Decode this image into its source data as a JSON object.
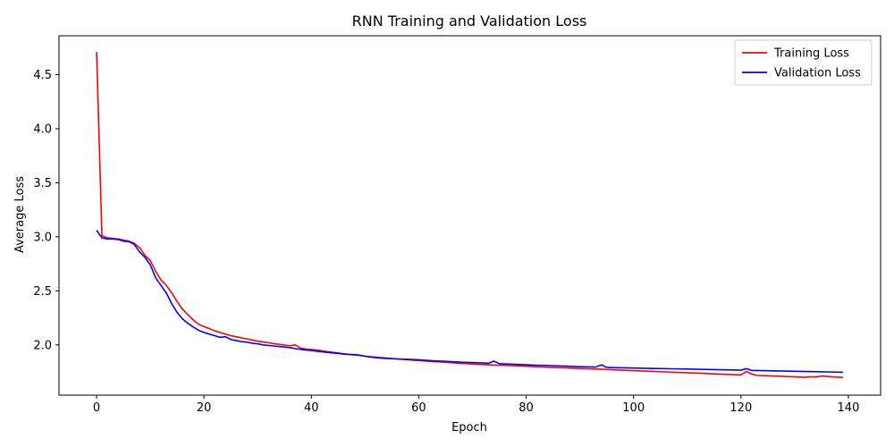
{
  "chart_data": {
    "type": "line",
    "title": "RNN Training and Validation Loss",
    "xlabel": "Epoch",
    "ylabel": "Average Loss",
    "xlim": [
      -7,
      146
    ],
    "ylim": [
      1.535,
      4.86
    ],
    "xticks": [
      0,
      20,
      40,
      60,
      80,
      100,
      120,
      140
    ],
    "yticks": [
      2.0,
      2.5,
      3.0,
      3.5,
      4.0,
      4.5
    ],
    "xtick_labels": [
      "0",
      "20",
      "40",
      "60",
      "80",
      "100",
      "120",
      "140"
    ],
    "ytick_labels": [
      "2.0",
      "2.5",
      "3.0",
      "3.5",
      "4.0",
      "4.5"
    ],
    "grid": false,
    "legend_position": "top-right",
    "x": [
      0,
      1,
      2,
      3,
      4,
      5,
      6,
      7,
      8,
      9,
      10,
      11,
      12,
      13,
      14,
      15,
      16,
      17,
      18,
      19,
      20,
      21,
      22,
      23,
      24,
      25,
      26,
      27,
      28,
      29,
      30,
      31,
      32,
      33,
      34,
      35,
      36,
      37,
      38,
      39,
      40,
      41,
      42,
      43,
      44,
      45,
      46,
      47,
      48,
      49,
      50,
      51,
      52,
      53,
      54,
      55,
      56,
      57,
      58,
      59,
      60,
      61,
      62,
      63,
      64,
      65,
      66,
      67,
      68,
      69,
      70,
      71,
      72,
      73,
      74,
      75,
      76,
      77,
      78,
      79,
      80,
      81,
      82,
      83,
      84,
      85,
      86,
      87,
      88,
      89,
      90,
      91,
      92,
      93,
      94,
      95,
      96,
      97,
      98,
      99,
      100,
      101,
      102,
      103,
      104,
      105,
      106,
      107,
      108,
      109,
      110,
      111,
      112,
      113,
      114,
      115,
      116,
      117,
      118,
      119,
      120,
      121,
      122,
      123,
      124,
      125,
      126,
      127,
      128,
      129,
      130,
      131,
      132,
      133,
      134,
      135,
      136,
      137,
      138,
      139
    ],
    "series": [
      {
        "name": "Training Loss",
        "color": "#ff0000",
        "values": [
          4.71,
          3.01,
          2.99,
          2.985,
          2.98,
          2.97,
          2.96,
          2.94,
          2.9,
          2.83,
          2.78,
          2.68,
          2.6,
          2.55,
          2.48,
          2.4,
          2.33,
          2.28,
          2.23,
          2.19,
          2.17,
          2.15,
          2.13,
          2.115,
          2.1,
          2.085,
          2.075,
          2.065,
          2.055,
          2.045,
          2.035,
          2.028,
          2.02,
          2.012,
          2.005,
          1.998,
          1.992,
          2.0,
          1.97,
          1.962,
          1.958,
          1.952,
          1.945,
          1.938,
          1.932,
          1.925,
          1.918,
          1.912,
          1.908,
          1.902,
          1.895,
          1.89,
          1.886,
          1.882,
          1.878,
          1.874,
          1.87,
          1.866,
          1.862,
          1.858,
          1.855,
          1.852,
          1.848,
          1.845,
          1.842,
          1.838,
          1.835,
          1.832,
          1.828,
          1.826,
          1.822,
          1.82,
          1.818,
          1.816,
          1.814,
          1.812,
          1.81,
          1.808,
          1.806,
          1.804,
          1.802,
          1.8,
          1.798,
          1.796,
          1.794,
          1.792,
          1.79,
          1.788,
          1.786,
          1.784,
          1.782,
          1.78,
          1.778,
          1.776,
          1.774,
          1.772,
          1.77,
          1.768,
          1.766,
          1.764,
          1.762,
          1.76,
          1.758,
          1.756,
          1.754,
          1.752,
          1.75,
          1.748,
          1.746,
          1.744,
          1.742,
          1.74,
          1.738,
          1.736,
          1.734,
          1.732,
          1.73,
          1.728,
          1.726,
          1.724,
          1.722,
          1.755,
          1.73,
          1.718,
          1.716,
          1.714,
          1.712,
          1.71,
          1.708,
          1.706,
          1.704,
          1.702,
          1.7,
          1.705,
          1.702,
          1.712,
          1.708,
          1.704,
          1.702,
          1.698
        ]
      },
      {
        "name": "Validation Loss",
        "color": "#0000ff",
        "values": [
          3.06,
          2.99,
          2.98,
          2.98,
          2.975,
          2.96,
          2.955,
          2.93,
          2.86,
          2.81,
          2.74,
          2.62,
          2.55,
          2.48,
          2.38,
          2.3,
          2.24,
          2.2,
          2.165,
          2.135,
          2.115,
          2.1,
          2.085,
          2.07,
          2.075,
          2.05,
          2.04,
          2.03,
          2.025,
          2.015,
          2.01,
          2.0,
          1.995,
          1.99,
          1.985,
          1.98,
          1.975,
          1.965,
          1.958,
          1.952,
          1.948,
          1.942,
          1.935,
          1.93,
          1.925,
          1.92,
          1.915,
          1.912,
          1.91,
          1.905,
          1.895,
          1.888,
          1.882,
          1.878,
          1.875,
          1.872,
          1.87,
          1.868,
          1.866,
          1.864,
          1.862,
          1.858,
          1.855,
          1.852,
          1.85,
          1.848,
          1.845,
          1.843,
          1.84,
          1.838,
          1.836,
          1.834,
          1.832,
          1.83,
          1.85,
          1.826,
          1.824,
          1.822,
          1.82,
          1.818,
          1.816,
          1.814,
          1.812,
          1.811,
          1.81,
          1.808,
          1.806,
          1.804,
          1.802,
          1.8,
          1.798,
          1.797,
          1.796,
          1.795,
          1.815,
          1.792,
          1.79,
          1.789,
          1.788,
          1.787,
          1.786,
          1.785,
          1.784,
          1.783,
          1.782,
          1.781,
          1.78,
          1.779,
          1.778,
          1.777,
          1.776,
          1.775,
          1.774,
          1.773,
          1.772,
          1.771,
          1.77,
          1.769,
          1.768,
          1.767,
          1.766,
          1.78,
          1.764,
          1.763,
          1.762,
          1.761,
          1.76,
          1.759,
          1.758,
          1.757,
          1.756,
          1.755,
          1.754,
          1.753,
          1.752,
          1.751,
          1.75,
          1.749,
          1.748,
          1.747
        ]
      }
    ]
  }
}
